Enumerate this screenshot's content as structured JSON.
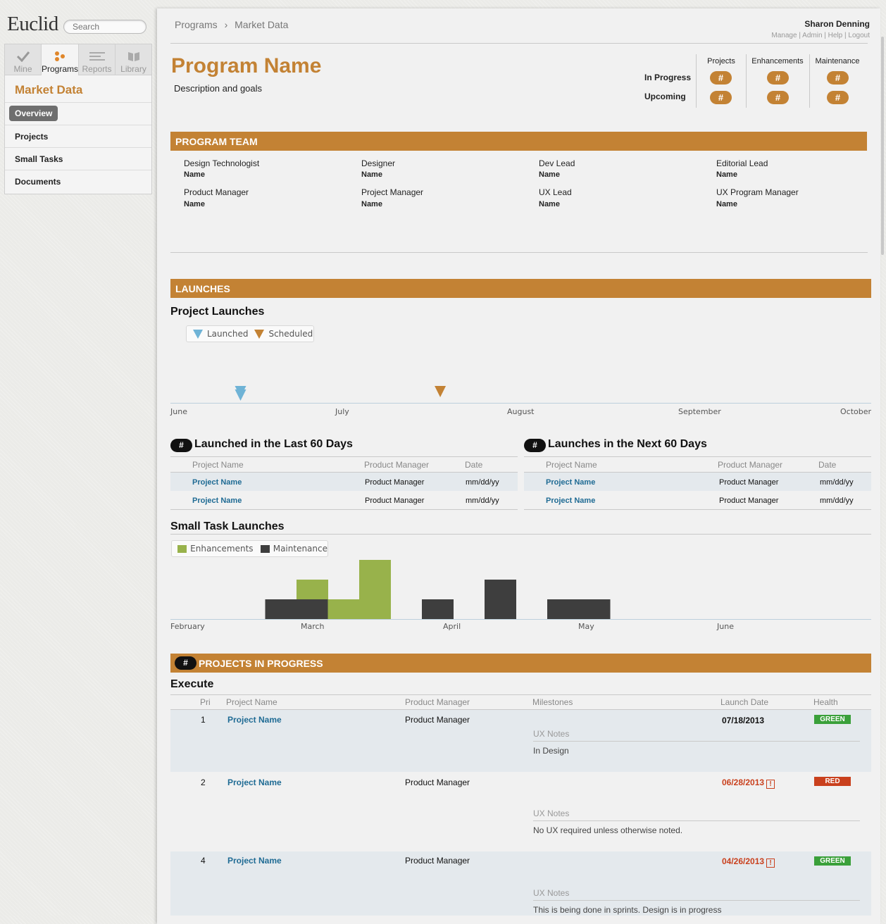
{
  "app": {
    "logo": "Euclid",
    "search_placeholder": "Search"
  },
  "nav": {
    "tabs": [
      {
        "label": "Mine",
        "icon": "check-icon"
      },
      {
        "label": "Programs",
        "icon": "programs-dots-icon"
      },
      {
        "label": "Reports",
        "icon": "reports-lines-icon"
      },
      {
        "label": "Library",
        "icon": "book-icon"
      }
    ],
    "active_tab": "Programs",
    "section_title": "Market Data",
    "items": [
      "Overview",
      "Projects",
      "Small Tasks",
      "Documents"
    ],
    "active_item": "Overview"
  },
  "breadcrumb": [
    "Programs",
    "Market Data"
  ],
  "user": {
    "name": "Sharon Denning",
    "links": [
      "Manage",
      "Admin",
      "Help",
      "Logout"
    ]
  },
  "program": {
    "title": "Program Name",
    "description": "Description and goals"
  },
  "stats": {
    "columns": [
      "Projects",
      "Enhancements",
      "Maintenance"
    ],
    "rows": [
      "In Progress",
      "Upcoming"
    ],
    "value": "#"
  },
  "team": {
    "header": "PROGRAM TEAM",
    "members": [
      {
        "role": "Design Technologist",
        "name": "Name"
      },
      {
        "role": "Designer",
        "name": "Name"
      },
      {
        "role": "Dev Lead",
        "name": "Name"
      },
      {
        "role": "Editorial Lead",
        "name": "Name"
      },
      {
        "role": "Product Manager",
        "name": "Name"
      },
      {
        "role": "Project Manager",
        "name": "Name"
      },
      {
        "role": "UX Lead",
        "name": "Name"
      },
      {
        "role": "UX Program Manager",
        "name": "Name"
      }
    ]
  },
  "launches": {
    "header": "LAUNCHES",
    "project_launches_title": "Project Launches",
    "legend": [
      {
        "label": "Launched",
        "color": "#6fb3d6"
      },
      {
        "label": "Scheduled",
        "color": "#c38234"
      }
    ],
    "timeline_months": [
      "June",
      "July",
      "August",
      "September",
      "October"
    ],
    "markers": [
      {
        "type": "Launched",
        "position": 0.1
      },
      {
        "type": "Launched",
        "position": 0.1
      },
      {
        "type": "Scheduled",
        "position": 0.385
      }
    ],
    "launched_last": {
      "count": "#",
      "title": "Launched in the Last 60 Days",
      "columns": [
        "Project Name",
        "Product Manager",
        "Date"
      ],
      "rows": [
        [
          "Project Name",
          "Product Manager",
          "mm/dd/yy"
        ],
        [
          "Project Name",
          "Product Manager",
          "mm/dd/yy"
        ]
      ]
    },
    "launches_next": {
      "count": "#",
      "title": "Launches in the Next 60 Days",
      "columns": [
        "Project Name",
        "Product Manager",
        "Date"
      ],
      "rows": [
        [
          "Project Name",
          "Product Manager",
          "mm/dd/yy"
        ],
        [
          "Project Name",
          "Product Manager",
          "mm/dd/yy"
        ]
      ]
    },
    "small_tasks_title": "Small Task Launches"
  },
  "chart_data": {
    "type": "bar",
    "stacked": true,
    "x_labels": [
      "February",
      "March",
      "April",
      "May",
      "June"
    ],
    "bins": [
      "Feb wk1",
      "Feb wk2",
      "Feb wk3",
      "Feb wk4",
      "Mar wk1",
      "Mar wk2",
      "Mar wk3",
      "Mar wk4",
      "Apr wk1",
      "Apr wk2",
      "Apr wk3",
      "Apr wk4",
      "May wk1",
      "May wk2",
      "May wk3",
      "May wk4",
      "Jun wk1",
      "Jun wk2",
      "Jun wk3",
      "Jun wk4"
    ],
    "series": [
      {
        "name": "Maintenance",
        "color": "#3e3e3e",
        "values": [
          0,
          0,
          0,
          1,
          1,
          0,
          0,
          0,
          1,
          0,
          2,
          0,
          1,
          1,
          0,
          0,
          0,
          0,
          0,
          0
        ]
      },
      {
        "name": "Enhancements",
        "color": "#98b24b",
        "values": [
          0,
          0,
          0,
          0,
          1,
          1,
          3,
          0,
          0,
          0,
          0,
          0,
          0,
          0,
          0,
          0,
          0,
          0,
          0,
          0
        ]
      }
    ],
    "ylim": [
      0,
      3
    ],
    "grid": false,
    "legend_position": "top-left"
  },
  "in_progress": {
    "count": "#",
    "header": "PROJECTS IN PROGRESS",
    "group": "Execute",
    "columns": [
      "Pri",
      "Project Name",
      "Product Manager",
      "Milestones",
      "Launch Date",
      "Health"
    ],
    "rows": [
      {
        "pri": "1",
        "name": "Project Name",
        "pm": "Product Manager",
        "date": "07/18/2013",
        "late": false,
        "health": "GREEN",
        "health_color": "#3aa03a",
        "notes_label": "UX Notes",
        "notes": "In Design"
      },
      {
        "pri": "2",
        "name": "Project Name",
        "pm": "Product Manager",
        "date": "06/28/2013",
        "late": true,
        "health": "RED",
        "health_color": "#c9401d",
        "notes_label": "UX Notes",
        "notes": "No UX required unless otherwise noted."
      },
      {
        "pri": "4",
        "name": "Project Name",
        "pm": "Product Manager",
        "date": "04/26/2013",
        "late": true,
        "health": "GREEN",
        "health_color": "#3aa03a",
        "notes_label": "UX Notes",
        "notes": "This is being done in sprints. Design is in progress"
      }
    ],
    "warn_icon": "!"
  }
}
